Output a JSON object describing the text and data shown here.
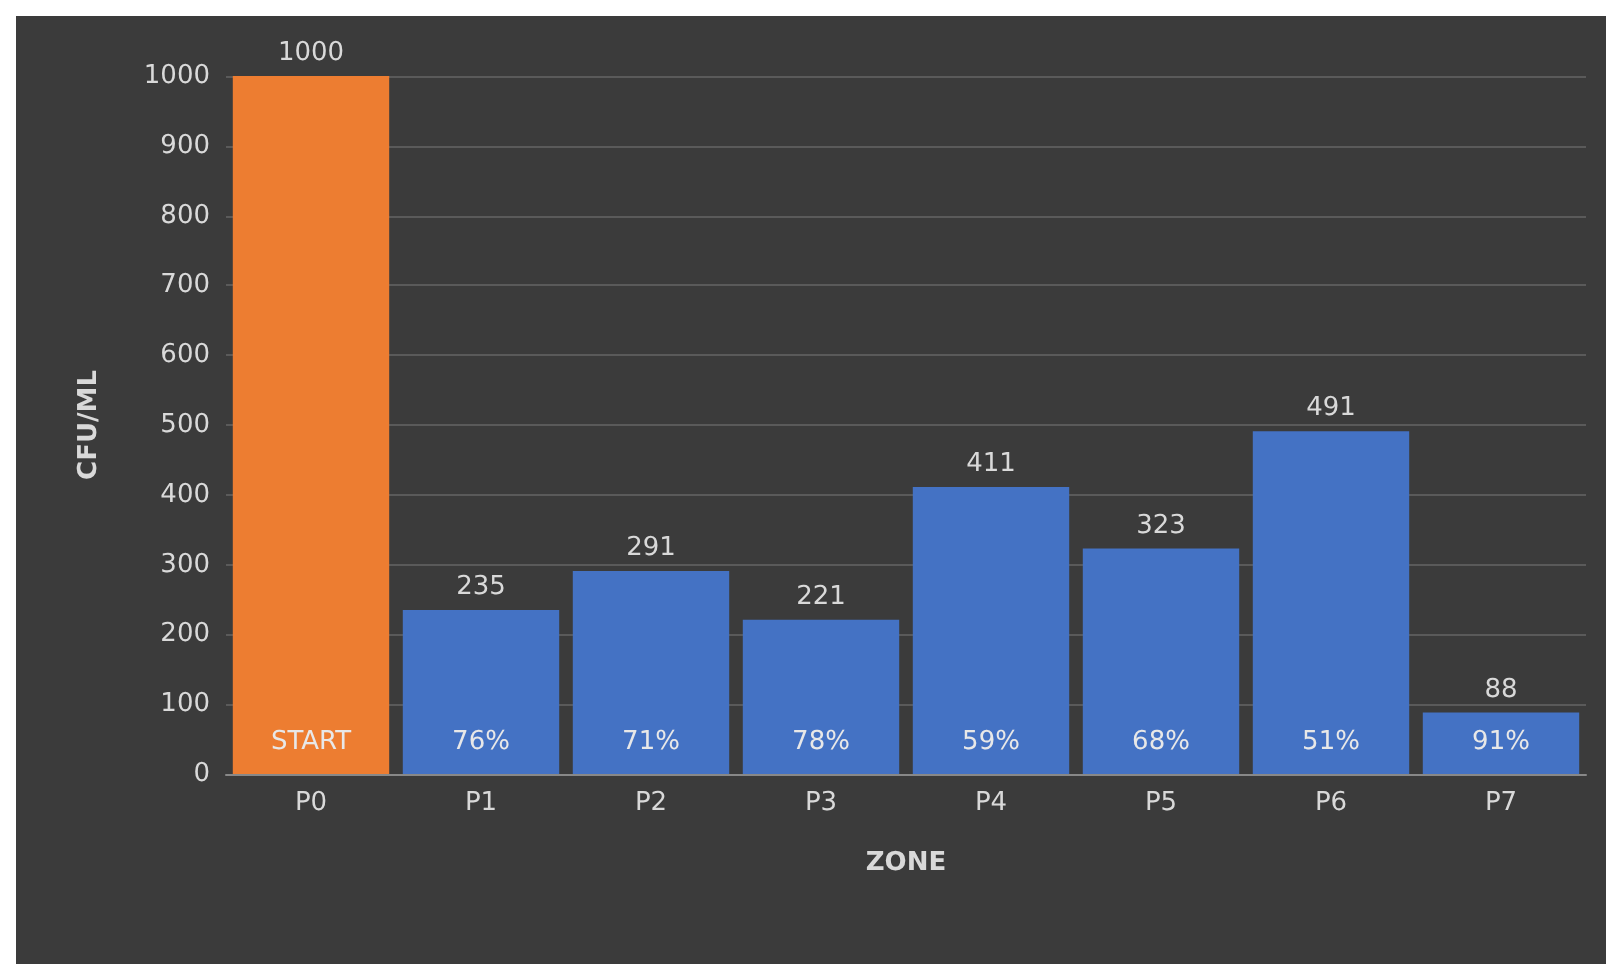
{
  "chart_data": {
    "type": "bar",
    "xlabel": "ZONE",
    "ylabel": "CFU/ML",
    "categories": [
      "P0",
      "P1",
      "P2",
      "P3",
      "P4",
      "P5",
      "P6",
      "P7"
    ],
    "values": [
      1000,
      235,
      291,
      221,
      411,
      323,
      491,
      88
    ],
    "colors": [
      "#ed7d31",
      "#4472c4",
      "#4472c4",
      "#4472c4",
      "#4472c4",
      "#4472c4",
      "#4472c4",
      "#4472c4"
    ],
    "ylim": [
      0,
      1000
    ],
    "yticks": [
      0,
      100,
      200,
      300,
      400,
      500,
      600,
      700,
      800,
      900,
      1000
    ],
    "grid": "y",
    "data_labels": true,
    "annotations": [
      "START",
      "76%",
      "71%",
      "78%",
      "59%",
      "68%",
      "51%",
      "91%"
    ]
  }
}
